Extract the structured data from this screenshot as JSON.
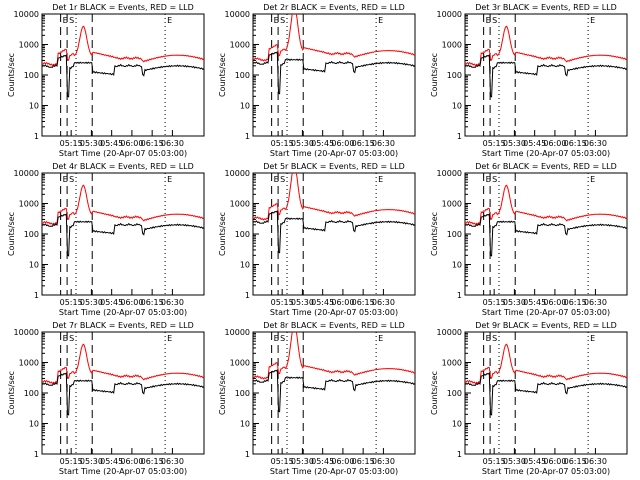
{
  "figure": {
    "rows": 3,
    "cols": 3
  },
  "colors": {
    "events": "#000000",
    "lld": "#ff0000",
    "axes": "#000000",
    "background": "#ffffff"
  },
  "chart_data": [
    {
      "type": "line",
      "title": "Det 1r BLACK = Events, RED = LLD",
      "xlabel": "Start Time (20-Apr-07 05:03:00)",
      "ylabel": "Counts/sec",
      "y_scale": "log",
      "ylim": [
        1,
        10000
      ],
      "x_ticks": [
        "05:15",
        "05:30",
        "05:45",
        "06:00",
        "06:15",
        "06:30"
      ],
      "y_ticks": [
        "1",
        "10",
        "100",
        "1000",
        "10000"
      ],
      "shape": 0,
      "series": [
        {
          "name": "BLACK = Events",
          "color": "#000000"
        },
        {
          "name": "RED = LLD",
          "color": "#ff0000"
        }
      ],
      "markers": [
        {
          "label": "E",
          "style": "dashed"
        },
        {
          "label": "S",
          "style": "dashed"
        },
        {
          "label": "",
          "style": "dotted"
        },
        {
          "label": "",
          "style": "dashed"
        },
        {
          "label": "E",
          "style": "dotted"
        }
      ]
    },
    {
      "type": "line",
      "title": "Det 2r BLACK = Events, RED = LLD",
      "xlabel": "Start Time (20-Apr-07 05:03:00)",
      "ylabel": "Counts/sec",
      "y_scale": "log",
      "ylim": [
        1,
        10000
      ],
      "x_ticks": [
        "05:15",
        "05:30",
        "05:45",
        "06:00",
        "06:15",
        "06:30"
      ],
      "y_ticks": [
        "1",
        "10",
        "100",
        "1000",
        "10000"
      ],
      "shape": 1,
      "series": [
        {
          "name": "BLACK = Events",
          "color": "#000000"
        },
        {
          "name": "RED = LLD",
          "color": "#ff0000"
        }
      ],
      "markers": [
        {
          "label": "E",
          "style": "dashed"
        },
        {
          "label": "S",
          "style": "dashed"
        },
        {
          "label": "",
          "style": "dotted"
        },
        {
          "label": "",
          "style": "dashed"
        },
        {
          "label": "E",
          "style": "dotted"
        }
      ]
    },
    {
      "type": "line",
      "title": "Det 3r BLACK = Events, RED = LLD",
      "xlabel": "Start Time (20-Apr-07 05:03:00)",
      "ylabel": "Counts/sec",
      "y_scale": "log",
      "ylim": [
        1,
        10000
      ],
      "x_ticks": [
        "05:15",
        "05:30",
        "05:45",
        "06:00",
        "06:15",
        "06:30"
      ],
      "y_ticks": [
        "1",
        "10",
        "100",
        "1000",
        "10000"
      ],
      "shape": 0,
      "series": [
        {
          "name": "BLACK = Events",
          "color": "#000000"
        },
        {
          "name": "RED = LLD",
          "color": "#ff0000"
        }
      ],
      "markers": [
        {
          "label": "E",
          "style": "dashed"
        },
        {
          "label": "S",
          "style": "dashed"
        },
        {
          "label": "",
          "style": "dotted"
        },
        {
          "label": "",
          "style": "dashed"
        },
        {
          "label": "E",
          "style": "dotted"
        }
      ]
    },
    {
      "type": "line",
      "title": "Det 4r BLACK = Events, RED = LLD",
      "xlabel": "Start Time (20-Apr-07 05:03:00)",
      "ylabel": "Counts/sec",
      "y_scale": "log",
      "ylim": [
        1,
        10000
      ],
      "x_ticks": [
        "05:15",
        "05:30",
        "05:45",
        "06:00",
        "06:15",
        "06:30"
      ],
      "y_ticks": [
        "1",
        "10",
        "100",
        "1000",
        "10000"
      ],
      "shape": 0,
      "series": [
        {
          "name": "BLACK = Events",
          "color": "#000000"
        },
        {
          "name": "RED = LLD",
          "color": "#ff0000"
        }
      ],
      "markers": [
        {
          "label": "E",
          "style": "dashed"
        },
        {
          "label": "S",
          "style": "dashed"
        },
        {
          "label": "",
          "style": "dotted"
        },
        {
          "label": "",
          "style": "dashed"
        },
        {
          "label": "E",
          "style": "dotted"
        }
      ]
    },
    {
      "type": "line",
      "title": "Det 5r BLACK = Events, RED = LLD",
      "xlabel": "Start Time (20-Apr-07 05:03:00)",
      "ylabel": "Counts/sec",
      "y_scale": "log",
      "ylim": [
        1,
        10000
      ],
      "x_ticks": [
        "05:15",
        "05:30",
        "05:45",
        "06:00",
        "06:15",
        "06:30"
      ],
      "y_ticks": [
        "1",
        "10",
        "100",
        "1000",
        "10000"
      ],
      "shape": 1,
      "series": [
        {
          "name": "BLACK = Events",
          "color": "#000000"
        },
        {
          "name": "RED = LLD",
          "color": "#ff0000"
        }
      ],
      "markers": [
        {
          "label": "E",
          "style": "dashed"
        },
        {
          "label": "S",
          "style": "dashed"
        },
        {
          "label": "",
          "style": "dotted"
        },
        {
          "label": "",
          "style": "dashed"
        },
        {
          "label": "E",
          "style": "dotted"
        }
      ]
    },
    {
      "type": "line",
      "title": "Det 6r BLACK = Events, RED = LLD",
      "xlabel": "Start Time (20-Apr-07 05:03:00)",
      "ylabel": "Counts/sec",
      "y_scale": "log",
      "ylim": [
        1,
        10000
      ],
      "x_ticks": [
        "05:15",
        "05:30",
        "05:45",
        "06:00",
        "06:15",
        "06:30"
      ],
      "y_ticks": [
        "1",
        "10",
        "100",
        "1000",
        "10000"
      ],
      "shape": 0,
      "series": [
        {
          "name": "BLACK = Events",
          "color": "#000000"
        },
        {
          "name": "RED = LLD",
          "color": "#ff0000"
        }
      ],
      "markers": [
        {
          "label": "E",
          "style": "dashed"
        },
        {
          "label": "S",
          "style": "dashed"
        },
        {
          "label": "",
          "style": "dotted"
        },
        {
          "label": "",
          "style": "dashed"
        },
        {
          "label": "E",
          "style": "dotted"
        }
      ]
    },
    {
      "type": "line",
      "title": "Det 7r BLACK = Events, RED = LLD",
      "xlabel": "Start Time (20-Apr-07 05:03:00)",
      "ylabel": "Counts/sec",
      "y_scale": "log",
      "ylim": [
        1,
        10000
      ],
      "x_ticks": [
        "05:15",
        "05:30",
        "05:45",
        "06:00",
        "06:15",
        "06:30"
      ],
      "y_ticks": [
        "1",
        "10",
        "100",
        "1000",
        "10000"
      ],
      "shape": 0,
      "series": [
        {
          "name": "BLACK = Events",
          "color": "#000000"
        },
        {
          "name": "RED = LLD",
          "color": "#ff0000"
        }
      ],
      "markers": [
        {
          "label": "E",
          "style": "dashed"
        },
        {
          "label": "S",
          "style": "dashed"
        },
        {
          "label": "",
          "style": "dotted"
        },
        {
          "label": "",
          "style": "dashed"
        },
        {
          "label": "E",
          "style": "dotted"
        }
      ]
    },
    {
      "type": "line",
      "title": "Det 8r BLACK = Events, RED = LLD",
      "xlabel": "Start Time (20-Apr-07 05:03:00)",
      "ylabel": "Counts/sec",
      "y_scale": "log",
      "ylim": [
        1,
        10000
      ],
      "x_ticks": [
        "05:15",
        "05:30",
        "05:45",
        "06:00",
        "06:15",
        "06:30"
      ],
      "y_ticks": [
        "1",
        "10",
        "100",
        "1000",
        "10000"
      ],
      "shape": 1,
      "series": [
        {
          "name": "BLACK = Events",
          "color": "#000000"
        },
        {
          "name": "RED = LLD",
          "color": "#ff0000"
        }
      ],
      "markers": [
        {
          "label": "E",
          "style": "dashed"
        },
        {
          "label": "S",
          "style": "dashed"
        },
        {
          "label": "",
          "style": "dotted"
        },
        {
          "label": "",
          "style": "dashed"
        },
        {
          "label": "E",
          "style": "dotted"
        }
      ]
    },
    {
      "type": "line",
      "title": "Det 9r BLACK = Events, RED = LLD",
      "xlabel": "Start Time (20-Apr-07 05:03:00)",
      "ylabel": "Counts/sec",
      "y_scale": "log",
      "ylim": [
        1,
        10000
      ],
      "x_ticks": [
        "05:15",
        "05:30",
        "05:45",
        "06:00",
        "06:15",
        "06:30"
      ],
      "y_ticks": [
        "1",
        "10",
        "100",
        "1000",
        "10000"
      ],
      "shape": 0,
      "series": [
        {
          "name": "BLACK = Events",
          "color": "#000000"
        },
        {
          "name": "RED = LLD",
          "color": "#ff0000"
        }
      ],
      "markers": [
        {
          "label": "E",
          "style": "dashed"
        },
        {
          "label": "S",
          "style": "dashed"
        },
        {
          "label": "",
          "style": "dotted"
        },
        {
          "label": "",
          "style": "dashed"
        },
        {
          "label": "E",
          "style": "dotted"
        }
      ]
    }
  ]
}
